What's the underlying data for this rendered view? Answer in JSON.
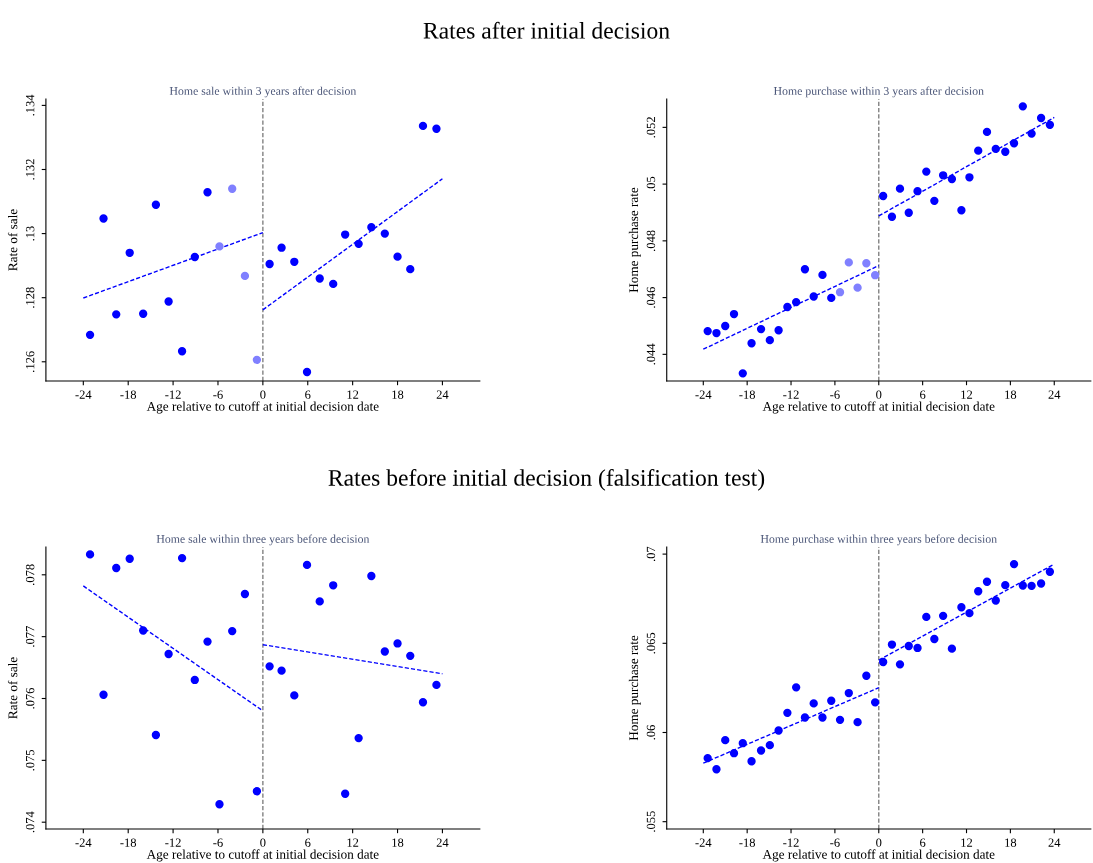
{
  "chart_data": [
    {
      "type": "scatter",
      "title": "Home sale within 3 years after decision",
      "xlabel": "Age relative to cutoff at initial decision date",
      "ylabel": "Rate of sale",
      "annotations": [
        "Rates after initial decision"
      ],
      "marker": "circle",
      "grid": false,
      "legend": false,
      "xlim": [
        -29,
        29
      ],
      "xticks": [
        -24,
        -18,
        -12,
        -6,
        0,
        6,
        12,
        18,
        24
      ],
      "ylim": [
        0.1254,
        0.1342
      ],
      "yticks": [
        {
          "value": 0.126,
          "label": ".126"
        },
        {
          "value": 0.128,
          "label": ".128"
        },
        {
          "value": 0.13,
          "label": ".13"
        },
        {
          "value": 0.132,
          "label": ".132"
        },
        {
          "value": 0.134,
          "label": ".134"
        }
      ],
      "ref_lines": [
        {
          "axis": "x",
          "value": 0,
          "color": "#808080",
          "line_style": "dashed"
        }
      ],
      "series": [
        {
          "type": "scatter",
          "color": "#0000ff",
          "x": [
            -23.1,
            -21.3,
            -19.6,
            -17.8,
            -16.0,
            -14.3,
            -12.6,
            -10.8,
            -9.1,
            -7.4
          ],
          "values": [
            0.12684,
            0.13047,
            0.12748,
            0.1294,
            0.1275,
            0.1309,
            0.12788,
            0.12633,
            0.12927,
            0.13129
          ]
        },
        {
          "color": "#8080ff",
          "x": [
            -5.8,
            -4.1,
            -2.4,
            -0.8
          ],
          "values": [
            0.1296,
            0.1314,
            0.12868,
            0.12606
          ]
        },
        {
          "type": "scatter",
          "color": "#0000ff",
          "x": [
            0.9,
            2.5,
            4.2,
            5.9,
            7.6,
            9.4,
            11.0,
            12.8,
            14.5,
            16.3,
            18.0,
            19.7,
            21.4,
            23.2
          ],
          "values": [
            0.12905,
            0.12956,
            0.12912,
            0.12568,
            0.1286,
            0.12843,
            0.12997,
            0.12968,
            0.1302,
            0.13,
            0.12928,
            0.12889,
            0.13336,
            0.13327
          ]
        },
        {
          "type": "line",
          "color": "#0000ff",
          "line_style": "dashed",
          "x": [
            -24,
            0
          ],
          "values": [
            0.12799,
            0.13003
          ],
          "marker": "none"
        },
        {
          "type": "line",
          "color": "#0000ff",
          "line_style": "dashed",
          "x": [
            0,
            24
          ],
          "values": [
            0.12762,
            0.13171
          ],
          "marker": "none"
        }
      ]
    },
    {
      "type": "scatter",
      "title": "Home purchase within 3 years after decision",
      "xlabel": "Age relative to cutoff at initial decision date",
      "ylabel": "Home purchase rate",
      "marker": "circle",
      "grid": false,
      "legend": false,
      "xlim": [
        -29,
        29
      ],
      "xticks": [
        -24,
        -18,
        -12,
        -6,
        0,
        6,
        12,
        18,
        24
      ],
      "ylim": [
        0.04306,
        0.053
      ],
      "yticks": [
        {
          "value": 0.044,
          "label": ".044"
        },
        {
          "value": 0.046,
          "label": ".046"
        },
        {
          "value": 0.048,
          "label": ".048"
        },
        {
          "value": 0.05,
          "label": ".05"
        },
        {
          "value": 0.052,
          "label": ".052"
        }
      ],
      "ref_lines": [
        {
          "axis": "x",
          "value": 0,
          "color": "#808080",
          "line_style": "dashed"
        }
      ],
      "series": [
        {
          "type": "scatter",
          "color": "#0000ff",
          "x": [
            -23.4,
            -22.2,
            -21.0,
            -19.8,
            -18.6,
            -17.4,
            -16.1,
            -14.9,
            -13.7,
            -12.5,
            -11.3,
            -10.1,
            -8.9,
            -7.7,
            -6.5
          ],
          "values": [
            0.04482,
            0.04475,
            0.045,
            0.04542,
            0.04333,
            0.04439,
            0.04489,
            0.0445,
            0.04485,
            0.04567,
            0.04584,
            0.047,
            0.04604,
            0.0468,
            0.04599
          ]
        },
        {
          "color": "#8080ff",
          "x": [
            -5.3,
            -4.1,
            -2.9,
            -1.7,
            -0.5
          ],
          "values": [
            0.04619,
            0.04724,
            0.04635,
            0.04721,
            0.04679
          ]
        },
        {
          "type": "scatter",
          "color": "#0000ff",
          "x": [
            0.6,
            1.8,
            2.9,
            4.1,
            5.3,
            6.5,
            7.6,
            8.8,
            10.0,
            11.3,
            12.4,
            13.6,
            14.8,
            16.0,
            17.3,
            18.5,
            19.7,
            20.9,
            22.2,
            23.4
          ],
          "values": [
            0.04958,
            0.04885,
            0.04984,
            0.04899,
            0.04975,
            0.05044,
            0.04941,
            0.05031,
            0.05018,
            0.04908,
            0.05024,
            0.05118,
            0.05184,
            0.05124,
            0.05114,
            0.05144,
            0.05274,
            0.05178,
            0.05233,
            0.05209
          ]
        },
        {
          "type": "line",
          "color": "#0000ff",
          "line_style": "dashed",
          "x": [
            -24,
            0
          ],
          "values": [
            0.04418,
            0.04713
          ],
          "marker": "none"
        },
        {
          "type": "line",
          "color": "#0000ff",
          "line_style": "dashed",
          "x": [
            0,
            24
          ],
          "values": [
            0.04888,
            0.05235
          ],
          "marker": "none"
        }
      ]
    },
    {
      "type": "scatter",
      "title": "Home sale within three years before decision",
      "xlabel": "Age relative to cutoff at initial decision date",
      "ylabel": "Rate of sale",
      "annotations": [
        "Rates before initial decision (falsification test)"
      ],
      "marker": "circle",
      "grid": false,
      "legend": false,
      "xlim": [
        -29,
        29
      ],
      "xticks": [
        -24,
        -18,
        -12,
        -6,
        0,
        6,
        12,
        18,
        24
      ],
      "ylim": [
        0.07389,
        0.07845
      ],
      "yticks": [
        {
          "value": 0.074,
          "label": ".074"
        },
        {
          "value": 0.075,
          "label": ".075"
        },
        {
          "value": 0.076,
          "label": ".076"
        },
        {
          "value": 0.077,
          "label": ".077"
        },
        {
          "value": 0.078,
          "label": ".078"
        }
      ],
      "ref_lines": [
        {
          "axis": "x",
          "value": 0,
          "color": "#808080",
          "line_style": "dashed"
        }
      ],
      "series": [
        {
          "type": "scatter",
          "color": "#0000ff",
          "x": [
            -23.1,
            -21.3,
            -19.6,
            -17.8,
            -16.0,
            -14.3,
            -12.6,
            -10.8,
            -9.1,
            -7.4,
            -5.8,
            -4.1,
            -2.4,
            -0.8
          ],
          "values": [
            0.07833,
            0.07606,
            0.07811,
            0.07826,
            0.0771,
            0.07541,
            0.07672,
            0.07827,
            0.0763,
            0.07692,
            0.07429,
            0.07709,
            0.07769,
            0.0745
          ]
        },
        {
          "type": "scatter",
          "color": "#0000ff",
          "x": [
            0.9,
            2.5,
            4.2,
            5.9,
            7.6,
            9.4,
            11.0,
            12.8,
            14.5,
            16.3,
            18.0,
            19.7,
            21.4,
            23.2
          ],
          "values": [
            0.07652,
            0.07645,
            0.07605,
            0.07816,
            0.07757,
            0.07783,
            0.07446,
            0.07536,
            0.07798,
            0.07676,
            0.07689,
            0.07669,
            0.07594,
            0.07622
          ]
        },
        {
          "type": "line",
          "color": "#0000ff",
          "line_style": "dashed",
          "x": [
            -24,
            0
          ],
          "values": [
            0.07782,
            0.0758
          ],
          "marker": "none"
        },
        {
          "type": "line",
          "color": "#0000ff",
          "line_style": "dashed",
          "x": [
            0,
            24
          ],
          "values": [
            0.07687,
            0.0764
          ],
          "marker": "none"
        }
      ]
    },
    {
      "type": "scatter",
      "title": "Home purchase within three years before decision",
      "xlabel": "Age relative to cutoff at initial decision date",
      "ylabel": "Home purchase rate",
      "marker": "circle",
      "grid": false,
      "legend": false,
      "xlim": [
        -29,
        29
      ],
      "xticks": [
        -24,
        -18,
        -12,
        -6,
        0,
        6,
        12,
        18,
        24
      ],
      "ylim": [
        0.05459,
        0.0704
      ],
      "yticks": [
        {
          "value": 0.055,
          "label": ".055"
        },
        {
          "value": 0.06,
          "label": ".06"
        },
        {
          "value": 0.065,
          "label": ".065"
        },
        {
          "value": 0.07,
          "label": ".07"
        }
      ],
      "ref_lines": [
        {
          "axis": "x",
          "value": 0,
          "color": "#808080",
          "line_style": "dashed"
        }
      ],
      "series": [
        {
          "type": "scatter",
          "color": "#0000ff",
          "x": [
            -23.4,
            -22.2,
            -21.0,
            -19.8,
            -18.6,
            -17.4,
            -16.1,
            -14.9,
            -13.7,
            -12.5,
            -11.3,
            -10.1,
            -8.9,
            -7.7,
            -6.5,
            -5.3,
            -4.1,
            -2.9,
            -1.7,
            -0.5
          ],
          "values": [
            0.05856,
            0.05794,
            0.05957,
            0.05884,
            0.0594,
            0.05839,
            0.05899,
            0.05929,
            0.06011,
            0.0611,
            0.06253,
            0.06084,
            0.06163,
            0.06084,
            0.06178,
            0.06071,
            0.06221,
            0.06058,
            0.06318,
            0.06169
          ]
        },
        {
          "type": "scatter",
          "color": "#0000ff",
          "x": [
            0.6,
            1.8,
            2.9,
            4.1,
            5.3,
            6.5,
            7.6,
            8.8,
            10.0,
            11.3,
            12.4,
            13.6,
            14.8,
            16.0,
            17.3,
            18.5,
            19.7,
            20.9,
            22.2,
            23.4
          ],
          "values": [
            0.06395,
            0.06493,
            0.06382,
            0.06485,
            0.06474,
            0.06648,
            0.06524,
            0.06654,
            0.0647,
            0.06702,
            0.06669,
            0.06792,
            0.06845,
            0.0674,
            0.06826,
            0.06944,
            0.06824,
            0.06822,
            0.06835,
            0.06901
          ]
        },
        {
          "type": "line",
          "color": "#0000ff",
          "line_style": "dashed",
          "x": [
            -24,
            0
          ],
          "values": [
            0.05828,
            0.06251
          ],
          "marker": "none"
        },
        {
          "type": "line",
          "color": "#0000ff",
          "line_style": "dashed",
          "x": [
            0,
            24
          ],
          "values": [
            0.06406,
            0.06944
          ],
          "marker": "none"
        }
      ]
    }
  ]
}
